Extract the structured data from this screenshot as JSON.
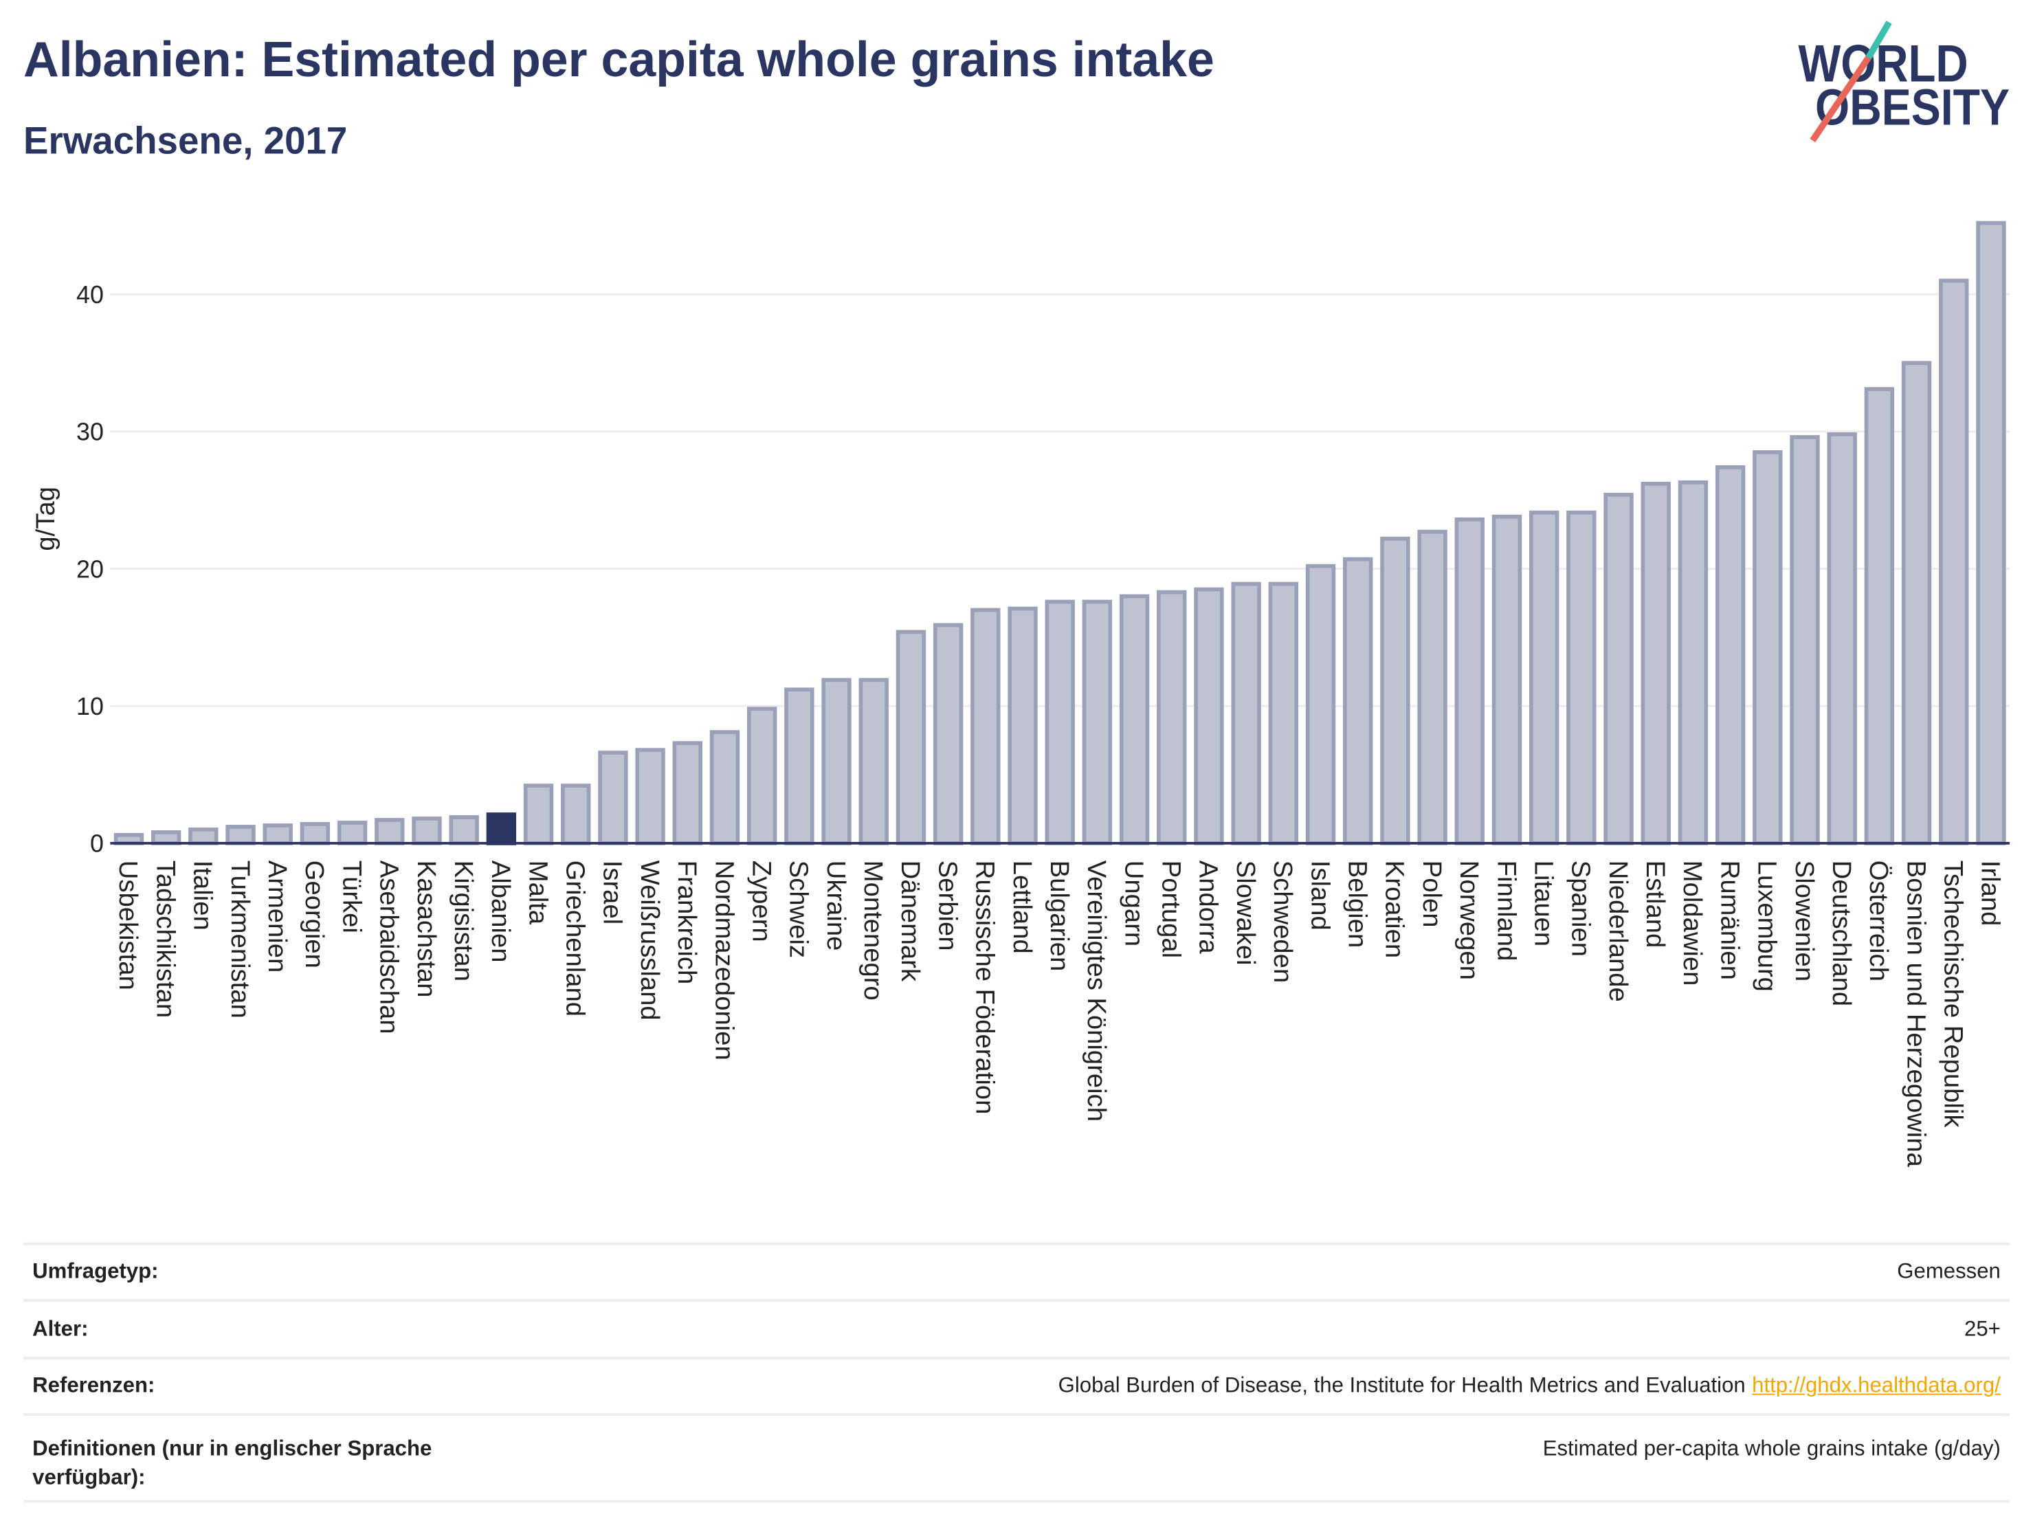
{
  "colors": {
    "text_primary": "#2b3562",
    "bar": "#bfc3d1",
    "bar_outline": "#9aa0b8",
    "highlight": "#2b3562",
    "axis": "#2b3562",
    "grid": "#ebebf0",
    "link": "#f0a800"
  },
  "logo": {
    "line1": "WORLD",
    "line2": "OBESITY",
    "slash_top_color": "#3dbfb0",
    "slash_bottom_color": "#e8675a"
  },
  "chart_data": {
    "type": "bar",
    "title": "Albanien: Estimated per capita whole grains intake",
    "subtitle": "Erwachsene, 2017",
    "ylabel": "g/Tag",
    "ylim": [
      0,
      47
    ],
    "yticks": [
      0,
      10,
      20,
      30,
      40
    ],
    "grid": true,
    "highlight": "Albanien",
    "categories": [
      "Usbekistan",
      "Tadschikistan",
      "Italien",
      "Turkmenistan",
      "Armenien",
      "Georgien",
      "Türkei",
      "Aserbaidschan",
      "Kasachstan",
      "Kirgisistan",
      "Albanien",
      "Malta",
      "Griechenland",
      "Israel",
      "Weißrussland",
      "Frankreich",
      "Nordmazedonien",
      "Zypern",
      "Schweiz",
      "Ukraine",
      "Montenegro",
      "Dänemark",
      "Serbien",
      "Russische Föderation",
      "Lettland",
      "Bulgarien",
      "Vereinigtes Königreich",
      "Ungarn",
      "Portugal",
      "Andorra",
      "Slowakei",
      "Schweden",
      "Island",
      "Belgien",
      "Kroatien",
      "Polen",
      "Norwegen",
      "Finnland",
      "Litauen",
      "Spanien",
      "Niederlande",
      "Estland",
      "Moldawien",
      "Rumänien",
      "Luxemburg",
      "Slowenien",
      "Deutschland",
      "Österreich",
      "Bosnien und Herzegowina",
      "Tschechische Republik",
      "Irland"
    ],
    "values": [
      0.6,
      0.8,
      1.0,
      1.2,
      1.3,
      1.4,
      1.5,
      1.7,
      1.8,
      1.9,
      2.1,
      4.2,
      4.2,
      6.6,
      6.8,
      7.3,
      8.1,
      9.8,
      11.2,
      11.9,
      11.9,
      15.4,
      15.9,
      17.0,
      17.1,
      17.6,
      17.6,
      18.0,
      18.3,
      18.5,
      18.9,
      18.9,
      20.2,
      20.7,
      22.2,
      22.7,
      23.6,
      23.8,
      24.1,
      24.1,
      25.4,
      26.2,
      26.3,
      27.4,
      28.5,
      29.6,
      29.8,
      33.1,
      35.0,
      41.0,
      45.2
    ]
  },
  "info": {
    "survey_type_label": "Umfragetyp:",
    "survey_type": "Gemessen",
    "age_label": "Alter:",
    "age": "25+",
    "references_label": "Referenzen:",
    "references_text": "Global Burden of Disease, the Institute for Health Metrics and Evaluation",
    "references_link": "http://ghdx.healthdata.org/",
    "definitions_label": "Definitionen (nur in englischer Sprache verfügbar):",
    "definitions": "Estimated per-capita whole grains intake (g/day)"
  }
}
